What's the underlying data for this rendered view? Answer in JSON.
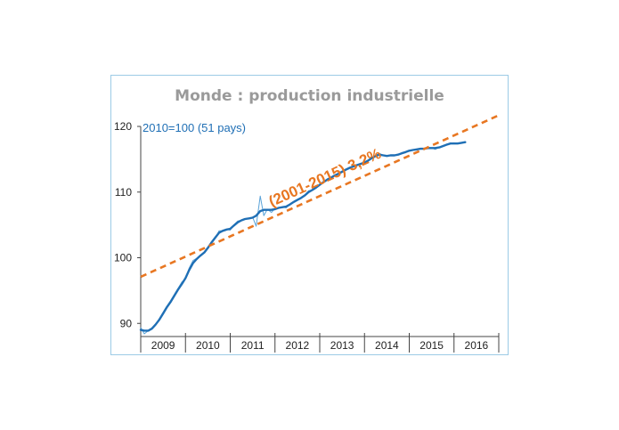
{
  "chart_data": {
    "type": "line",
    "title": "Monde : production industrielle",
    "subtitle": "2010=100 (51 pays)",
    "annotation": "(2001-2015) 3,2%",
    "ylim": [
      88,
      120
    ],
    "yticks": [
      90,
      100,
      110,
      120
    ],
    "xlim": [
      2009.0,
      2017.0
    ],
    "xtick_labels": [
      "2009",
      "2010",
      "2011",
      "2012",
      "2013",
      "2014",
      "2015",
      "2016"
    ],
    "grid": false,
    "colors": {
      "series": "#1f6fb5",
      "trend": "#e87722",
      "border": "#9ccbe6",
      "title": "#9a9a9a"
    },
    "series": [
      {
        "style": "monthly",
        "x": [
          2009.0,
          2009.08,
          2009.17,
          2009.25,
          2009.33,
          2009.42,
          2009.5,
          2009.58,
          2009.67,
          2009.75,
          2009.83,
          2009.92,
          2010.0,
          2010.08,
          2010.17,
          2010.25,
          2010.33,
          2010.42,
          2010.5,
          2010.58,
          2010.67,
          2010.75,
          2010.83,
          2010.92,
          2011.0,
          2011.08,
          2011.17,
          2011.25,
          2011.33,
          2011.42,
          2011.5,
          2011.58,
          2011.67,
          2011.75,
          2011.83,
          2011.92,
          2012.0,
          2012.08,
          2012.17,
          2012.25,
          2012.33,
          2012.42,
          2012.5,
          2012.58,
          2012.67,
          2012.75,
          2012.83,
          2012.92,
          2013.0,
          2013.08,
          2013.17,
          2013.25,
          2013.33,
          2013.42,
          2013.5,
          2013.58,
          2013.67,
          2013.75,
          2013.83,
          2013.92,
          2014.0,
          2014.08,
          2014.17,
          2014.25,
          2014.33,
          2014.42,
          2014.5,
          2014.58,
          2014.67,
          2014.75,
          2014.83,
          2014.92,
          2015.0,
          2015.08,
          2015.17,
          2015.25,
          2015.33,
          2015.42,
          2015.5,
          2015.58,
          2015.67,
          2015.75,
          2015.83,
          2015.92,
          2016.0,
          2016.08,
          2016.17,
          2016.25
        ],
        "values": [
          89.4,
          88.4,
          88.9,
          89.1,
          89.8,
          90.8,
          91.7,
          92.6,
          93.5,
          94.4,
          95.3,
          96.3,
          96.8,
          98.4,
          99.6,
          99.9,
          100.3,
          100.8,
          101.5,
          102.3,
          103.0,
          104.1,
          104.1,
          104.3,
          104.2,
          105.0,
          105.6,
          105.7,
          105.9,
          106.0,
          106.2,
          104.8,
          109.4,
          106.4,
          107.4,
          106.9,
          107.5,
          107.6,
          107.7,
          107.6,
          108.1,
          108.6,
          108.9,
          109.1,
          109.6,
          110.2,
          110.3,
          110.8,
          111.2,
          111.5,
          112.0,
          112.3,
          112.6,
          112.9,
          113.2,
          113.5,
          113.8,
          113.9,
          114.1,
          114.3,
          114.6,
          114.8,
          115.2,
          115.6,
          115.9,
          115.6,
          115.5,
          115.6,
          115.6,
          115.7,
          115.9,
          116.1,
          116.3,
          116.4,
          116.5,
          116.6,
          116.6,
          116.8,
          116.7,
          116.5,
          116.8,
          117.0,
          117.3,
          117.4,
          117.5,
          117.4,
          117.5,
          117.6
        ]
      },
      {
        "style": "smoothed",
        "x": [
          2009.0,
          2009.08,
          2009.17,
          2009.25,
          2009.33,
          2009.42,
          2009.5,
          2009.58,
          2009.67,
          2009.75,
          2009.83,
          2009.92,
          2010.0,
          2010.08,
          2010.17,
          2010.25,
          2010.33,
          2010.42,
          2010.5,
          2010.58,
          2010.67,
          2010.75,
          2010.83,
          2010.92,
          2011.0,
          2011.08,
          2011.17,
          2011.25,
          2011.33,
          2011.42,
          2011.5,
          2011.58,
          2011.67,
          2011.75,
          2011.83,
          2011.92,
          2012.0,
          2012.08,
          2012.17,
          2012.25,
          2012.33,
          2012.42,
          2012.5,
          2012.58,
          2012.67,
          2012.75,
          2012.83,
          2012.92,
          2013.0,
          2013.08,
          2013.17,
          2013.25,
          2013.33,
          2013.42,
          2013.5,
          2013.58,
          2013.67,
          2013.75,
          2013.83,
          2013.92,
          2014.0,
          2014.08,
          2014.17,
          2014.25,
          2014.33,
          2014.42,
          2014.5,
          2014.58,
          2014.67,
          2014.75,
          2014.83,
          2014.92,
          2015.0,
          2015.08,
          2015.17,
          2015.25,
          2015.33,
          2015.42,
          2015.5,
          2015.58,
          2015.67,
          2015.75,
          2015.83,
          2015.92,
          2016.0,
          2016.08,
          2016.17,
          2016.25
        ],
        "values": [
          89.0,
          88.9,
          88.9,
          89.2,
          89.8,
          90.6,
          91.5,
          92.4,
          93.3,
          94.2,
          95.1,
          96.0,
          96.9,
          98.1,
          99.2,
          99.8,
          100.3,
          100.8,
          101.5,
          102.3,
          103.1,
          103.8,
          104.1,
          104.3,
          104.4,
          104.9,
          105.4,
          105.7,
          105.9,
          106.0,
          106.1,
          106.4,
          107.1,
          107.3,
          107.3,
          107.3,
          107.4,
          107.6,
          107.7,
          107.8,
          108.1,
          108.5,
          108.8,
          109.1,
          109.5,
          110.0,
          110.3,
          110.7,
          111.1,
          111.5,
          111.9,
          112.2,
          112.5,
          112.8,
          113.1,
          113.4,
          113.7,
          113.9,
          114.1,
          114.3,
          114.5,
          114.8,
          115.2,
          115.5,
          115.7,
          115.6,
          115.5,
          115.6,
          115.6,
          115.7,
          115.9,
          116.1,
          116.3,
          116.4,
          116.5,
          116.6,
          116.6,
          116.7,
          116.7,
          116.7,
          116.8,
          117.0,
          117.2,
          117.4,
          117.4,
          117.4,
          117.5,
          117.6
        ]
      },
      {
        "style": "trend",
        "x": [
          2009.0,
          2017.0
        ],
        "values": [
          97.1,
          121.7
        ]
      }
    ]
  }
}
